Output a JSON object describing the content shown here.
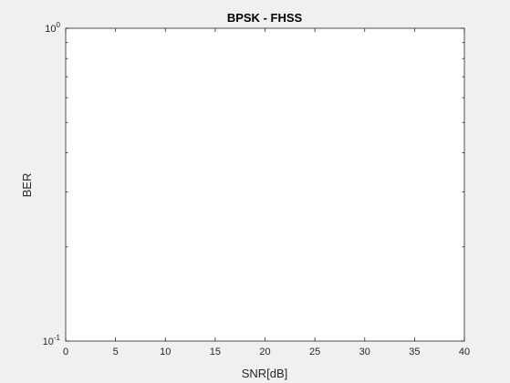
{
  "chart_data": {
    "type": "line",
    "title": "BPSK - FHSS",
    "xlabel": "SNR[dB]",
    "ylabel": "BER",
    "xlim": [
      0,
      40
    ],
    "ylim": [
      0.1,
      1
    ],
    "yscale": "log",
    "grid": false,
    "x_ticks": [
      "0",
      "5",
      "10",
      "15",
      "20",
      "25",
      "30",
      "35",
      "40"
    ],
    "y_ticks": [
      {
        "base": "10",
        "exp": "-1"
      },
      {
        "base": "10",
        "exp": "0"
      }
    ],
    "series": []
  },
  "colors": {
    "figure_background": "#f0f0f0",
    "axes_background": "#ffffff",
    "axis_color": "#262626"
  }
}
